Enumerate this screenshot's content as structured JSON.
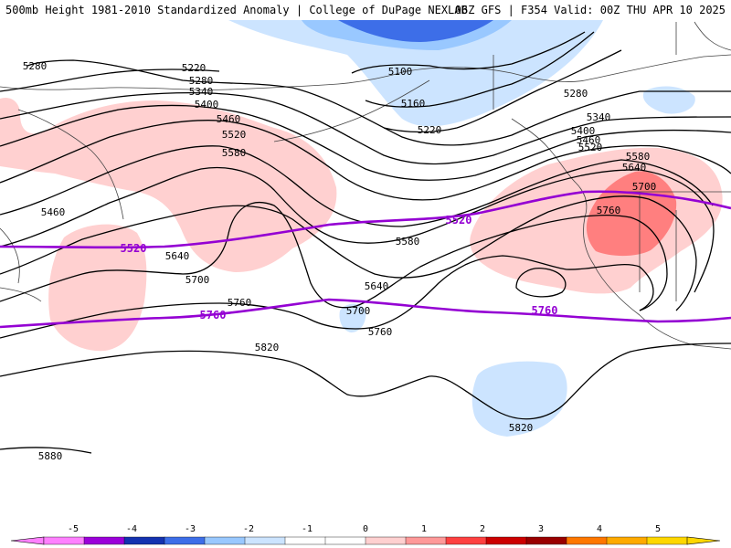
{
  "header": {
    "left_title": "500mb Height 1981-2010 Standardized Anomaly | College of DuPage NEXLAB",
    "right_title": "06Z GFS | F354 Valid: 00Z THU APR 10 2025"
  },
  "colors": {
    "contour": "#000000",
    "reference_contour": "#9400d3",
    "coast": "#444444",
    "anom_neg_1": "#cce4ff",
    "anom_neg_2": "#99c8ff",
    "anom_neg_3": "#3d6ee8",
    "anom_pos_1": "#ffd0d0",
    "anom_pos_2": "#ff7f7f",
    "anom_pos_3": "#e60000"
  },
  "contour_labels": [
    "5280",
    "5220",
    "5280",
    "5340",
    "5400",
    "5460",
    "5520",
    "5580",
    "5460",
    "5640",
    "5700",
    "5760",
    "5820",
    "5880",
    "5100",
    "5160",
    "5220",
    "5280",
    "5340",
    "5400",
    "5460",
    "5520",
    "5580",
    "5640",
    "5700",
    "5760",
    "5580",
    "5640",
    "5700",
    "5760",
    "5820"
  ],
  "reference_labels": [
    "5520",
    "5520",
    "5760",
    "5760"
  ],
  "colorbar": {
    "ticks": [
      "-5",
      "-4",
      "-3",
      "-2",
      "-1",
      "0",
      "1",
      "2",
      "3",
      "4",
      "5"
    ],
    "segments": [
      "#ff80ff",
      "#9b00d9",
      "#1432b0",
      "#3d6ee8",
      "#99c8ff",
      "#cce4ff",
      "#ffffff",
      "#ffffff",
      "#ffd0d0",
      "#ff9999",
      "#ff4040",
      "#cc0000",
      "#990000",
      "#ff7700",
      "#ffaa00",
      "#ffd700"
    ]
  }
}
